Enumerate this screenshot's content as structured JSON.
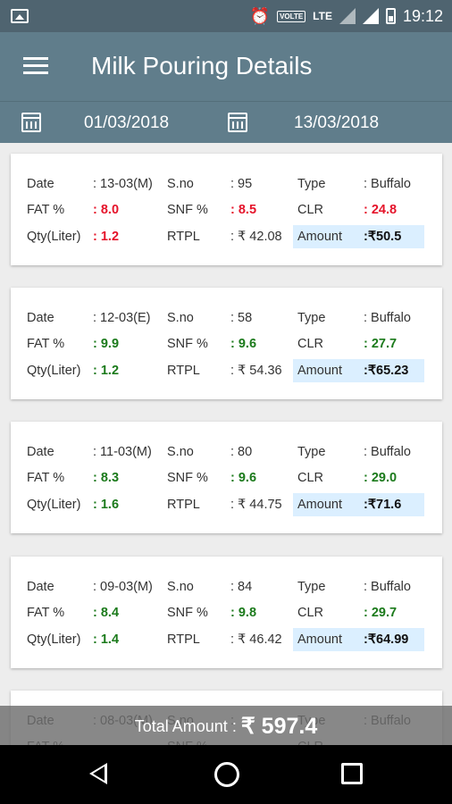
{
  "status": {
    "time": "19:12",
    "volte": "VOLTE",
    "lte": "LTE"
  },
  "appbar": {
    "title": "Milk Pouring Details"
  },
  "filters": {
    "from_date": "01/03/2018",
    "to_date": "13/03/2018"
  },
  "labels": {
    "date": "Date",
    "sno": "S.no",
    "type": "Type",
    "fat": "FAT %",
    "snf": "SNF %",
    "clr": "CLR",
    "qty": "Qty(Liter)",
    "rtpl": "RTPL",
    "amount": "Amount"
  },
  "records": [
    {
      "date": ": 13-03(M)",
      "sno": ": 95",
      "type": ": Buffalo",
      "fat": ": 8.0",
      "snf": ": 8.5",
      "clr": ": 24.8",
      "qty": ": 1.2",
      "rtpl": ": ₹ 42.08",
      "amount": ":₹50.5",
      "status_color": "#e5132a"
    },
    {
      "date": ": 12-03(E)",
      "sno": ": 58",
      "type": ": Buffalo",
      "fat": ": 9.9",
      "snf": ": 9.6",
      "clr": ": 27.7",
      "qty": ": 1.2",
      "rtpl": ": ₹ 54.36",
      "amount": ":₹65.23",
      "status_color": "#1b7a1b"
    },
    {
      "date": ": 11-03(M)",
      "sno": ": 80",
      "type": ": Buffalo",
      "fat": ": 8.3",
      "snf": ": 9.6",
      "clr": ": 29.0",
      "qty": ": 1.6",
      "rtpl": ": ₹ 44.75",
      "amount": ":₹71.6",
      "status_color": "#1b7a1b"
    },
    {
      "date": ": 09-03(M)",
      "sno": ": 84",
      "type": ": Buffalo",
      "fat": ": 8.4",
      "snf": ": 9.8",
      "clr": ": 29.7",
      "qty": ": 1.4",
      "rtpl": ": ₹ 46.42",
      "amount": ":₹64.99",
      "status_color": "#1b7a1b"
    },
    {
      "date": ": 08-03(M)",
      "sno": ":",
      "type": ": Buffalo",
      "fat": "",
      "snf": "",
      "clr": "",
      "qty": "",
      "rtpl": "",
      "amount": "",
      "status_color": "#1b7a1b"
    }
  ],
  "total": {
    "label": "Total Amount : ",
    "value": "₹ 597.4"
  }
}
